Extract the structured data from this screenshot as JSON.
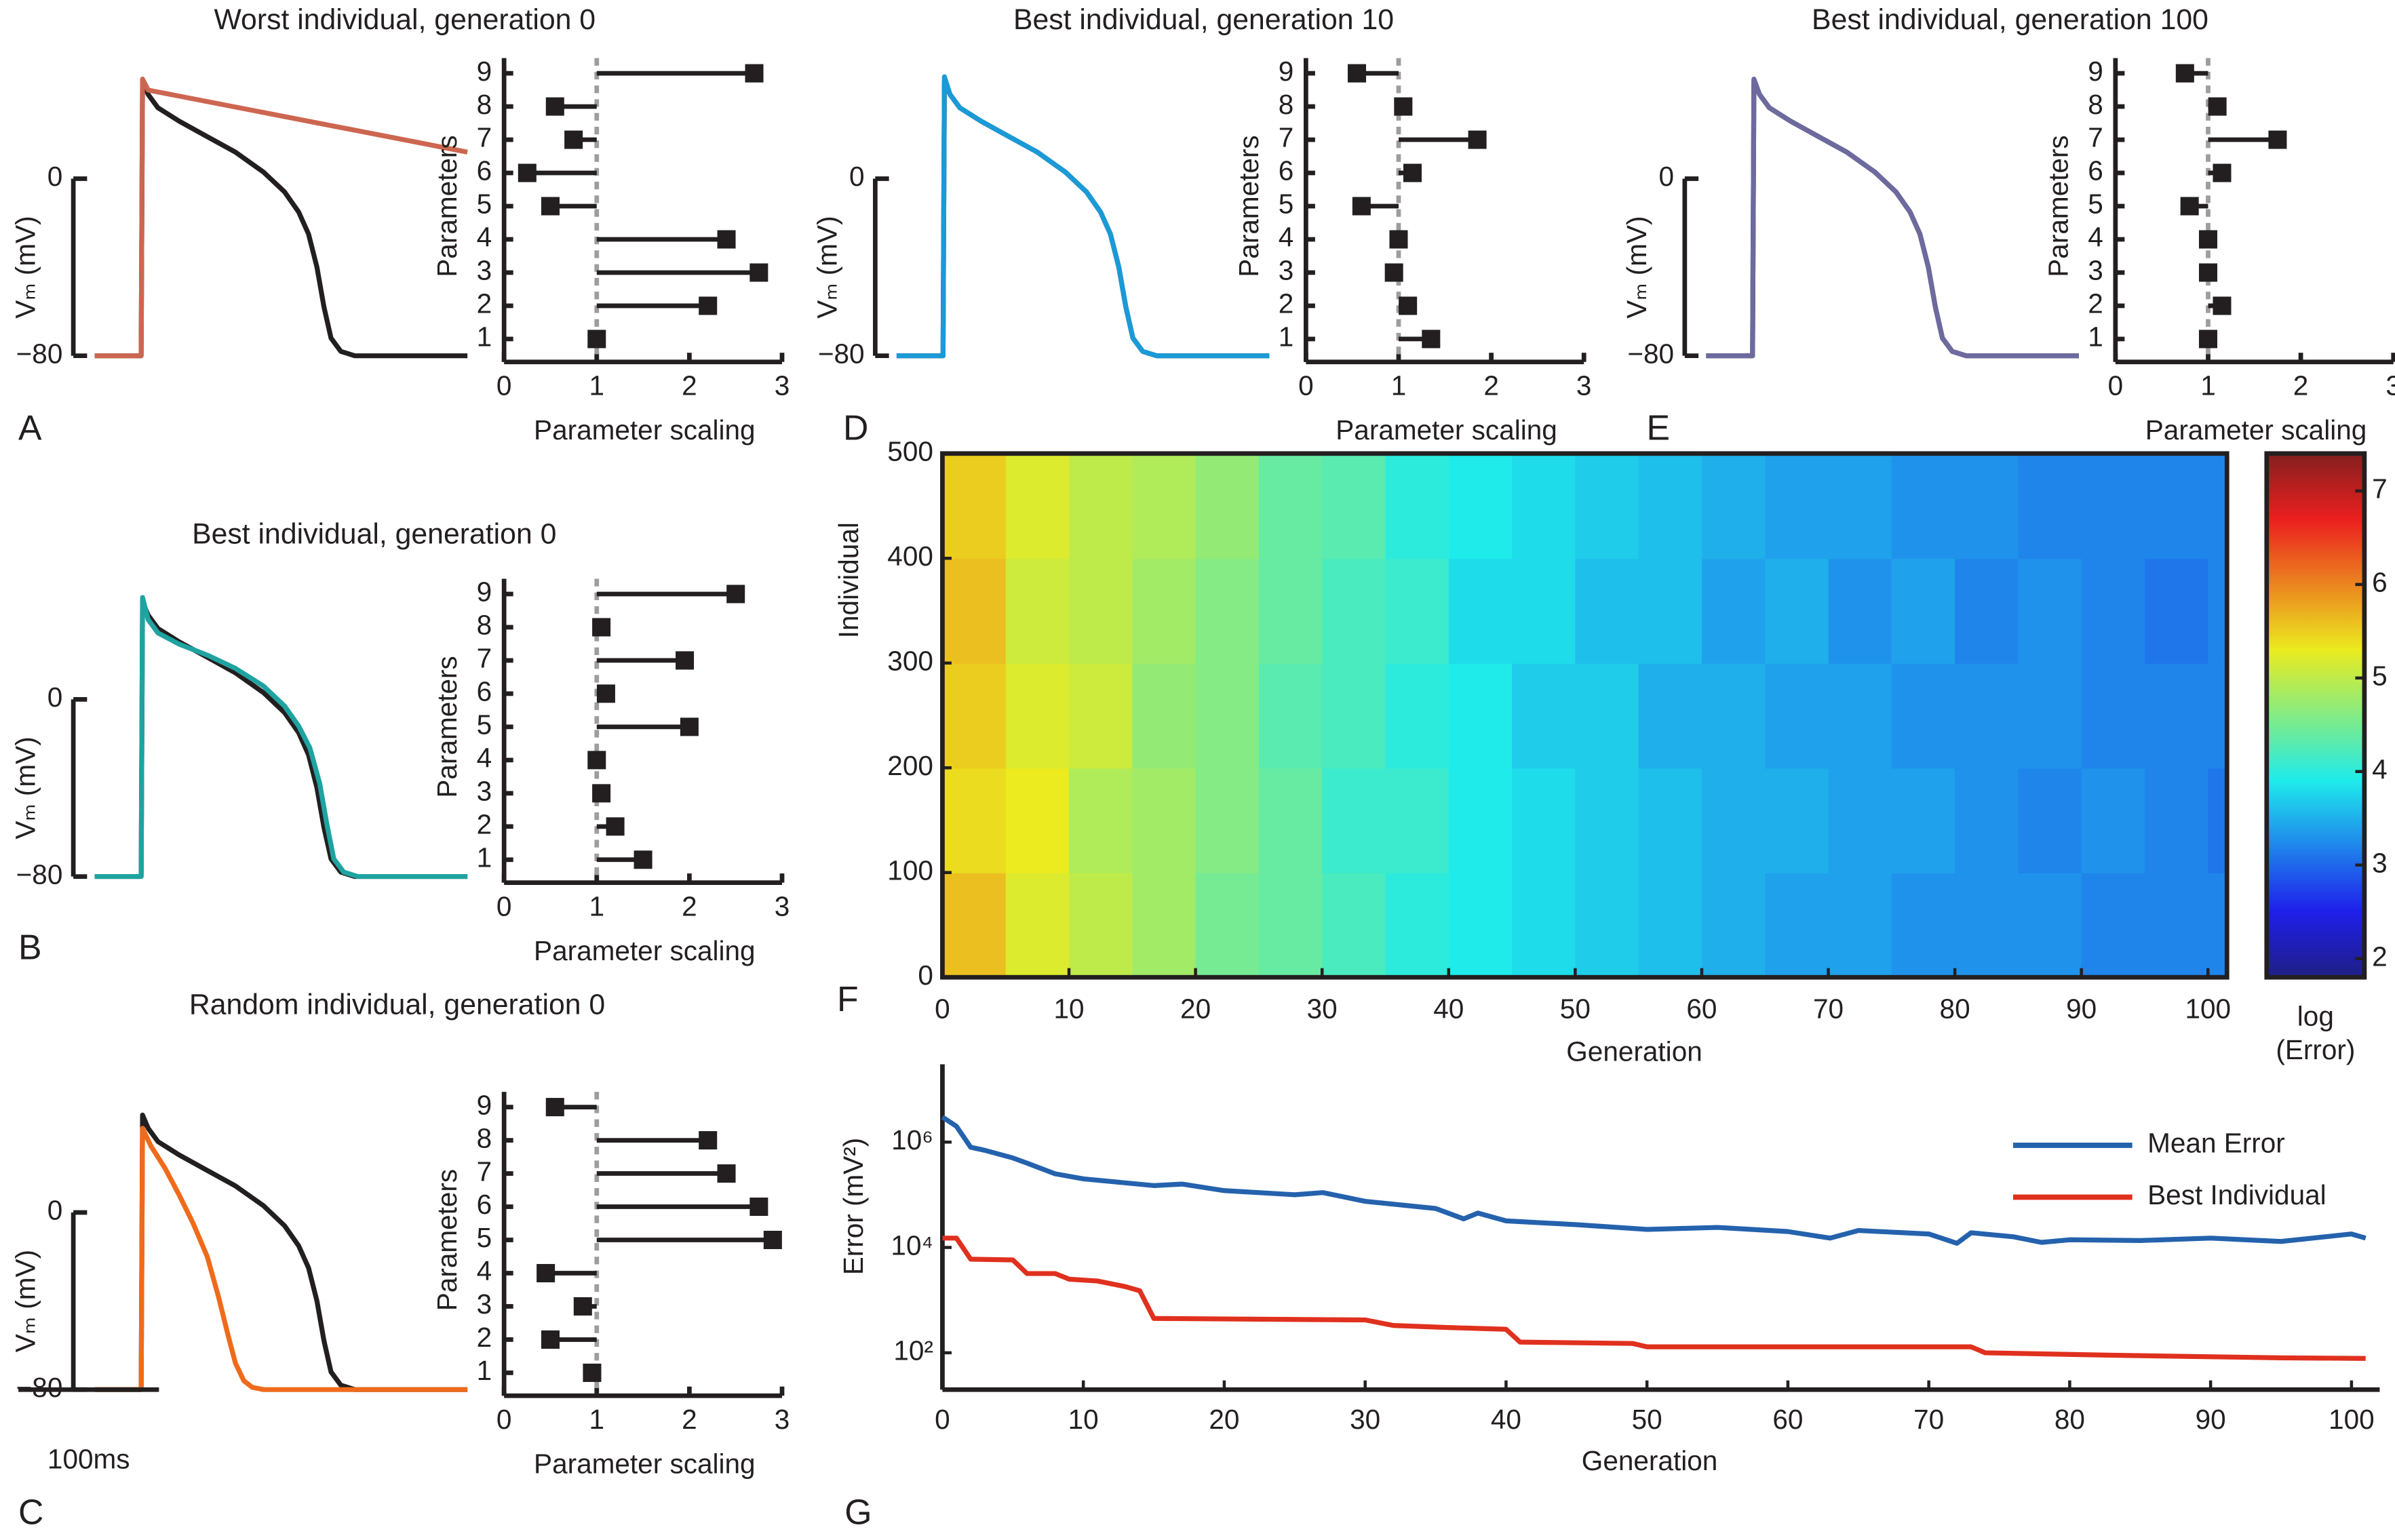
{
  "chart_data": [
    {
      "type": "line",
      "title": "Worst individual, generation 0",
      "panel_label": "A",
      "ylabel": "Vₘ (mV)",
      "xlim": [
        0,
        265
      ],
      "ylim": [
        -85,
        48
      ],
      "yticks": [
        {
          "value": -80,
          "label": "−80"
        },
        0
      ],
      "series": [
        {
          "color": "#231f20",
          "x": [
            0,
            33,
            34,
            38,
            45,
            60,
            80,
            100,
            120,
            135,
            145,
            152,
            158,
            163,
            168,
            175,
            185,
            265
          ],
          "values": [
            -80,
            -80,
            44,
            38,
            32,
            26,
            19,
            12,
            3,
            -6,
            -15,
            -25,
            -40,
            -58,
            -72,
            -78,
            -80,
            -80
          ]
        },
        {
          "color": "#cd6650",
          "x": [
            0,
            33,
            34,
            38,
            265
          ],
          "values": [
            -80,
            -80,
            45,
            40,
            12
          ]
        }
      ]
    },
    {
      "type": "lollipop",
      "xlabel": "Parameter scaling",
      "ylabel": "Parameters",
      "categories": [
        "1",
        "2",
        "3",
        "4",
        "5",
        "6",
        "7",
        "8",
        "9"
      ],
      "values": [
        1.0,
        2.2,
        2.75,
        2.4,
        0.5,
        0.25,
        0.75,
        0.55,
        2.7
      ],
      "baseline": 1,
      "color": "#231f20",
      "xlim": [
        0,
        3
      ],
      "xticks": [
        0,
        1,
        2,
        3
      ]
    },
    {
      "type": "line",
      "title": "Best individual, generation 0",
      "panel_label": "B",
      "ylabel": "Vₘ (mV)",
      "xlim": [
        0,
        265
      ],
      "ylim": [
        -85,
        48
      ],
      "yticks": [
        {
          "value": -80,
          "label": "−80"
        },
        0
      ],
      "series": [
        {
          "color": "#231f20",
          "x": [
            0,
            33,
            34,
            38,
            45,
            60,
            80,
            100,
            120,
            135,
            145,
            152,
            158,
            163,
            168,
            175,
            185,
            265
          ],
          "values": [
            -80,
            -80,
            44,
            38,
            32,
            26,
            19,
            12,
            3,
            -6,
            -15,
            -25,
            -40,
            -58,
            -72,
            -78,
            -80,
            -80
          ]
        },
        {
          "color": "#1fa3a0",
          "x": [
            0,
            33,
            34,
            38,
            45,
            60,
            80,
            100,
            120,
            135,
            145,
            153,
            160,
            165,
            170,
            177,
            187,
            265
          ],
          "values": [
            -80,
            -80,
            46,
            36,
            30,
            25,
            20,
            14,
            6,
            -3,
            -12,
            -22,
            -38,
            -56,
            -72,
            -78,
            -80,
            -80
          ]
        }
      ]
    },
    {
      "type": "lollipop",
      "xlabel": "Parameter scaling",
      "ylabel": "Parameters",
      "categories": [
        "1",
        "2",
        "3",
        "4",
        "5",
        "6",
        "7",
        "8",
        "9"
      ],
      "values": [
        1.5,
        1.2,
        1.05,
        1.0,
        2.0,
        1.1,
        1.95,
        1.05,
        2.5
      ],
      "baseline": 1,
      "color": "#231f20",
      "xlim": [
        0,
        3
      ],
      "xticks": [
        0,
        1,
        2,
        3
      ]
    },
    {
      "type": "line",
      "title": "Random individual, generation 0",
      "panel_label": "C",
      "ylabel": "Vₘ (mV)",
      "xlim": [
        0,
        265
      ],
      "ylim": [
        -85,
        48
      ],
      "yticks": [
        {
          "value": -80,
          "label": "−80"
        },
        0
      ],
      "scale_bar": {
        "value": 100,
        "label": "100ms"
      },
      "series": [
        {
          "color": "#231f20",
          "x": [
            0,
            33,
            34,
            38,
            45,
            60,
            80,
            100,
            120,
            135,
            145,
            152,
            158,
            163,
            168,
            175,
            185,
            265
          ],
          "values": [
            -80,
            -80,
            44,
            38,
            32,
            26,
            19,
            12,
            3,
            -6,
            -15,
            -25,
            -40,
            -58,
            -72,
            -78,
            -80,
            -80
          ]
        },
        {
          "color": "#ef6b1b",
          "x": [
            0,
            33,
            34,
            40,
            50,
            60,
            70,
            80,
            88,
            95,
            100,
            106,
            112,
            120,
            265
          ],
          "values": [
            -80,
            -80,
            38,
            30,
            20,
            8,
            -5,
            -20,
            -38,
            -56,
            -68,
            -76,
            -79,
            -80,
            -80
          ]
        }
      ]
    },
    {
      "type": "lollipop",
      "xlabel": "Parameter scaling",
      "ylabel": "Parameters",
      "categories": [
        "1",
        "2",
        "3",
        "4",
        "5",
        "6",
        "7",
        "8",
        "9"
      ],
      "values": [
        0.95,
        0.5,
        0.85,
        0.45,
        2.9,
        2.75,
        2.4,
        2.2,
        0.55
      ],
      "baseline": 1,
      "color": "#231f20",
      "xlim": [
        0,
        3
      ],
      "xticks": [
        0,
        1,
        2,
        3
      ]
    },
    {
      "type": "line",
      "title": "Best individual, generation 10",
      "panel_label": "D",
      "ylabel": "Vₘ (mV)",
      "xlim": [
        0,
        265
      ],
      "ylim": [
        -85,
        48
      ],
      "yticks": [
        {
          "value": -80,
          "label": "−80"
        },
        0
      ],
      "series": [
        {
          "color": "#231f20",
          "x": [
            0,
            33,
            34,
            38,
            45,
            60,
            80,
            100,
            120,
            135,
            145,
            152,
            158,
            163,
            168,
            175,
            185,
            265
          ],
          "values": [
            -80,
            -80,
            44,
            38,
            32,
            26,
            19,
            12,
            3,
            -6,
            -15,
            -25,
            -40,
            -58,
            -72,
            -78,
            -80,
            -80
          ]
        },
        {
          "color": "#1a9ad6",
          "x": [
            0,
            33,
            34,
            38,
            45,
            60,
            80,
            100,
            120,
            135,
            145,
            152,
            158,
            163,
            168,
            175,
            185,
            265
          ],
          "values": [
            -80,
            -80,
            46,
            38,
            32,
            26,
            19,
            12,
            3,
            -6,
            -15,
            -25,
            -40,
            -58,
            -72,
            -78,
            -80,
            -80
          ]
        }
      ]
    },
    {
      "type": "lollipop",
      "xlabel": "Parameter scaling",
      "ylabel": "Parameters",
      "categories": [
        "1",
        "2",
        "3",
        "4",
        "5",
        "6",
        "7",
        "8",
        "9"
      ],
      "values": [
        1.35,
        1.1,
        0.95,
        1.0,
        0.6,
        1.15,
        1.85,
        1.05,
        0.55
      ],
      "baseline": 1,
      "color": "#231f20",
      "xlim": [
        0,
        3
      ],
      "xticks": [
        0,
        1,
        2,
        3
      ]
    },
    {
      "type": "line",
      "title": "Best individual, generation 100",
      "panel_label": "E",
      "ylabel": "Vₘ (mV)",
      "xlim": [
        0,
        265
      ],
      "ylim": [
        -85,
        48
      ],
      "yticks": [
        {
          "value": -80,
          "label": "−80"
        },
        0
      ],
      "series": [
        {
          "color": "#231f20",
          "x": [
            0,
            33,
            34,
            38,
            45,
            60,
            80,
            100,
            120,
            135,
            145,
            152,
            158,
            163,
            168,
            175,
            185,
            265
          ],
          "values": [
            -80,
            -80,
            44,
            38,
            32,
            26,
            19,
            12,
            3,
            -6,
            -15,
            -25,
            -40,
            -58,
            -72,
            -78,
            -80,
            -80
          ]
        },
        {
          "color": "#6c6a9e",
          "x": [
            0,
            33,
            34,
            38,
            45,
            60,
            80,
            100,
            120,
            135,
            145,
            152,
            158,
            163,
            168,
            175,
            185,
            265
          ],
          "values": [
            -80,
            -80,
            45,
            38,
            32,
            26,
            19,
            12,
            3,
            -6,
            -15,
            -25,
            -40,
            -58,
            -72,
            -78,
            -80,
            -80
          ]
        }
      ]
    },
    {
      "type": "lollipop",
      "xlabel": "Parameter scaling",
      "ylabel": "Parameters",
      "categories": [
        "1",
        "2",
        "3",
        "4",
        "5",
        "6",
        "7",
        "8",
        "9"
      ],
      "values": [
        1.0,
        1.15,
        1.0,
        1.0,
        0.8,
        1.15,
        1.75,
        1.1,
        0.75
      ],
      "baseline": 1,
      "color": "#231f20",
      "xlim": [
        0,
        3
      ],
      "xticks": [
        0,
        1,
        2,
        3
      ]
    },
    {
      "type": "heatmap",
      "panel_label": "F",
      "xlabel": "Generation",
      "ylabel": "Individual",
      "colorbar_label": [
        "log",
        "(Error)"
      ],
      "colormap": "jet",
      "clim": [
        1.8,
        7.4
      ],
      "cticks": [
        2,
        3,
        4,
        5,
        6,
        7
      ],
      "xlim": [
        0,
        101.5
      ],
      "ylim": [
        0,
        500
      ],
      "xticks": [
        0,
        10,
        20,
        30,
        40,
        50,
        60,
        70,
        80,
        90,
        100
      ],
      "yticks": [
        0,
        100,
        200,
        300,
        400,
        500
      ],
      "x_bins": [
        0,
        5,
        10,
        15,
        20,
        25,
        30,
        35,
        40,
        45,
        50,
        55,
        60,
        65,
        70,
        75,
        80,
        85,
        90,
        95,
        100,
        101.5
      ],
      "y_bins": [
        0,
        100,
        200,
        300,
        400,
        500
      ],
      "values": [
        [
          5.6,
          5.2,
          5.0,
          4.8,
          4.5,
          4.4,
          4.2,
          4.0,
          3.9,
          3.8,
          3.7,
          3.6,
          3.5,
          3.4,
          3.4,
          3.3,
          3.3,
          3.3,
          3.2,
          3.2,
          3.2
        ],
        [
          5.4,
          5.3,
          4.9,
          4.8,
          4.6,
          4.4,
          4.1,
          4.1,
          3.9,
          3.8,
          3.7,
          3.6,
          3.5,
          3.5,
          3.4,
          3.4,
          3.3,
          3.2,
          3.3,
          3.2,
          3.1
        ],
        [
          5.5,
          5.2,
          5.1,
          4.7,
          4.6,
          4.3,
          4.2,
          4.0,
          3.9,
          3.7,
          3.7,
          3.5,
          3.5,
          3.4,
          3.4,
          3.3,
          3.3,
          3.3,
          3.2,
          3.2,
          3.2
        ],
        [
          5.6,
          5.1,
          5.0,
          4.8,
          4.6,
          4.4,
          4.2,
          4.1,
          3.8,
          3.8,
          3.6,
          3.6,
          3.4,
          3.5,
          3.3,
          3.4,
          3.2,
          3.3,
          3.2,
          3.1,
          3.2
        ],
        [
          5.5,
          5.2,
          5.0,
          4.9,
          4.7,
          4.4,
          4.3,
          4.0,
          3.9,
          3.8,
          3.7,
          3.6,
          3.5,
          3.4,
          3.4,
          3.3,
          3.3,
          3.2,
          3.2,
          3.2,
          3.2
        ]
      ]
    },
    {
      "type": "line",
      "panel_label": "G",
      "xlabel": "Generation",
      "ylabel": "Error (mV²)",
      "yscale": "log",
      "legend": "upper right",
      "xlim": [
        0,
        102
      ],
      "xticks": [
        0,
        10,
        20,
        30,
        40,
        50,
        60,
        70,
        80,
        90,
        100
      ],
      "ylim": [
        20,
        30000000
      ],
      "yticks": [
        {
          "value": 100,
          "label": "10²"
        },
        {
          "value": 10000,
          "label": "10⁴"
        },
        {
          "value": 1000000,
          "label": "10⁶"
        }
      ],
      "series": [
        {
          "name": "Mean Error",
          "color": "#2462ad",
          "x": [
            0,
            1,
            2,
            3,
            5,
            6,
            8,
            10,
            15,
            17,
            20,
            25,
            27,
            30,
            35,
            37,
            38,
            40,
            45,
            50,
            55,
            60,
            63,
            65,
            70,
            72,
            73,
            76,
            78,
            80,
            85,
            90,
            95,
            100,
            101
          ],
          "values": [
            3000000,
            2000000,
            800000,
            700000,
            500000,
            400000,
            250000,
            200000,
            150000,
            160000,
            120000,
            100000,
            110000,
            75000,
            55000,
            35000,
            45000,
            32000,
            27000,
            22000,
            24000,
            20000,
            15000,
            21000,
            18000,
            12000,
            19000,
            16000,
            12500,
            14000,
            13500,
            15000,
            13000,
            18000,
            15000
          ]
        },
        {
          "name": "Best Individual",
          "color": "#e0301e",
          "x": [
            0,
            1,
            2,
            5,
            6,
            8,
            9,
            11,
            13,
            14,
            15,
            30,
            32,
            36,
            40,
            41,
            49,
            50,
            73,
            74,
            83,
            95,
            101
          ],
          "values": [
            15000,
            15000,
            6000,
            5800,
            3200,
            3200,
            2500,
            2300,
            1800,
            1500,
            450,
            420,
            330,
            300,
            280,
            160,
            150,
            130,
            130,
            100,
            90,
            80,
            78
          ]
        }
      ]
    }
  ]
}
